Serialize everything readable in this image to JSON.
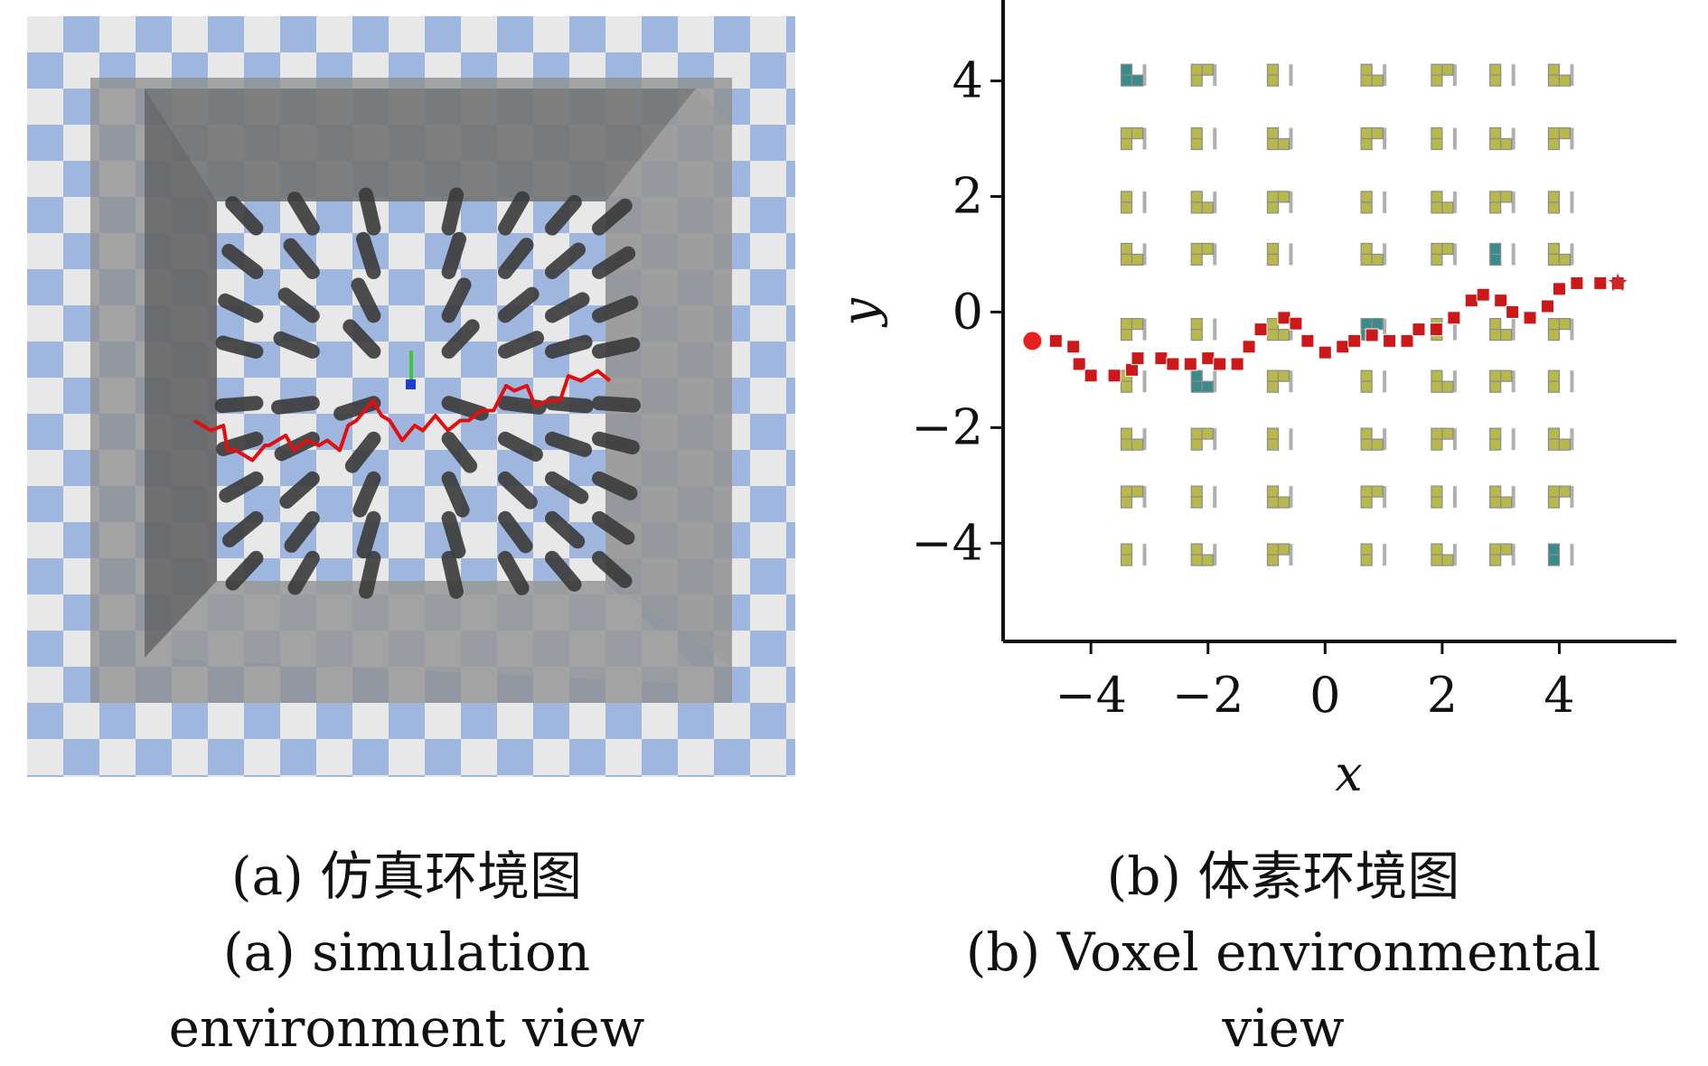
{
  "figure": {
    "caption_a_zh": "(a) 仿真环境图",
    "caption_a_en_line1": "(a) simulation",
    "caption_a_en_line2": "environment view",
    "caption_b_zh": "(b) 体素环境图",
    "caption_b_en_line1": "(b) Voxel environmental",
    "caption_b_en_line2": "view"
  },
  "colors": {
    "checker_light": "#e8e8e8",
    "checker_blue": "#9fb6df",
    "wall_gray": "#8c8c8c",
    "obstacle_dark": "#3a3a3a",
    "path_red": "#e01010",
    "voxel_olive": "#b9b84a",
    "voxel_teal": "#3a8c8a",
    "voxel_path_red": "#cc1818"
  },
  "chart_data": {
    "type": "scatter",
    "xlabel": "x",
    "ylabel": "y",
    "xlim": [
      -5.5,
      6
    ],
    "ylim": [
      -5.7,
      5.4
    ],
    "xticks": [
      -4,
      -2,
      0,
      2,
      4
    ],
    "yticks": [
      -4,
      -2,
      0,
      2,
      4
    ],
    "xtick_labels": [
      "−4",
      "−2",
      "0",
      "2",
      "4"
    ],
    "ytick_labels": [
      "−4",
      "−2",
      "0",
      "2",
      "4"
    ],
    "obstacle_columns_x": [
      -3.3,
      -2.1,
      -0.8,
      0.8,
      2.0,
      3.0,
      4.0
    ],
    "obstacle_rows_y": [
      4.1,
      3.0,
      1.9,
      1.0,
      -0.3,
      -1.2,
      -2.2,
      -3.2,
      -4.2
    ],
    "path_start": [
      -5.0,
      -0.5
    ],
    "path_goal": [
      5.0,
      0.5
    ],
    "path": [
      [
        -5.0,
        -0.5
      ],
      [
        -4.6,
        -0.5
      ],
      [
        -4.3,
        -0.6
      ],
      [
        -4.2,
        -0.9
      ],
      [
        -4.0,
        -1.1
      ],
      [
        -3.6,
        -1.1
      ],
      [
        -3.3,
        -1.0
      ],
      [
        -3.2,
        -0.8
      ],
      [
        -2.8,
        -0.8
      ],
      [
        -2.6,
        -0.9
      ],
      [
        -2.3,
        -0.9
      ],
      [
        -2.0,
        -0.8
      ],
      [
        -1.8,
        -0.9
      ],
      [
        -1.5,
        -0.9
      ],
      [
        -1.3,
        -0.6
      ],
      [
        -1.1,
        -0.3
      ],
      [
        -0.7,
        -0.1
      ],
      [
        -0.5,
        -0.2
      ],
      [
        -0.3,
        -0.5
      ],
      [
        0.0,
        -0.7
      ],
      [
        0.3,
        -0.6
      ],
      [
        0.5,
        -0.5
      ],
      [
        0.8,
        -0.4
      ],
      [
        1.1,
        -0.5
      ],
      [
        1.4,
        -0.5
      ],
      [
        1.6,
        -0.3
      ],
      [
        1.9,
        -0.3
      ],
      [
        2.2,
        -0.1
      ],
      [
        2.5,
        0.2
      ],
      [
        2.7,
        0.3
      ],
      [
        3.0,
        0.2
      ],
      [
        3.2,
        0.0
      ],
      [
        3.5,
        -0.1
      ],
      [
        3.8,
        0.1
      ],
      [
        4.0,
        0.4
      ],
      [
        4.3,
        0.5
      ],
      [
        4.7,
        0.5
      ],
      [
        5.0,
        0.5
      ]
    ]
  }
}
